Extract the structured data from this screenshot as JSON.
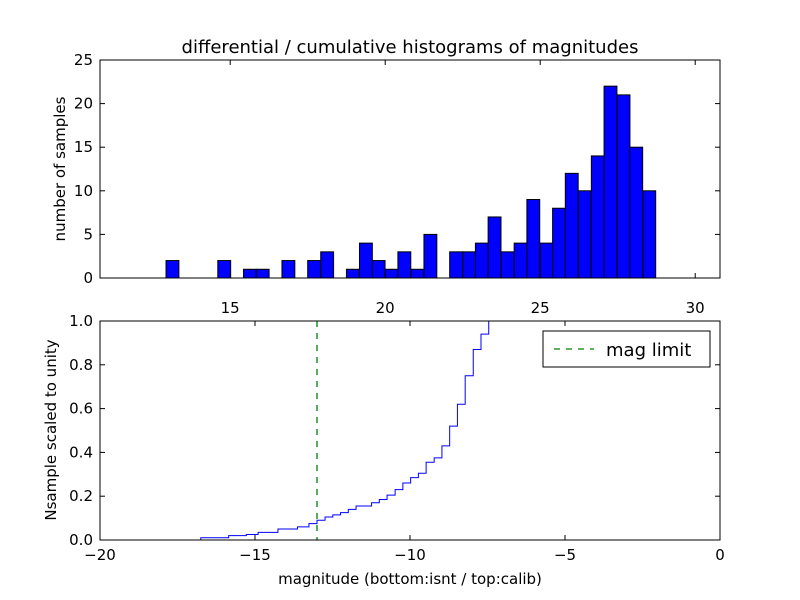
{
  "chart_data": [
    {
      "type": "bar",
      "title": "differential / cumulative histograms of magnitudes",
      "xlabel": "",
      "ylabel": "number of samples",
      "xlim": [
        10.8,
        30.8
      ],
      "ylim": [
        0,
        25
      ],
      "xticks": [
        15,
        20,
        25,
        30
      ],
      "yticks": [
        0,
        5,
        10,
        15,
        20,
        25
      ],
      "xtick_labels": [
        "15",
        "20",
        "25",
        "30"
      ],
      "ytick_labels": [
        "0",
        "5",
        "10",
        "15",
        "20",
        "25"
      ],
      "bin_width": 0.415,
      "bins": [
        {
          "x0": 12.93,
          "value": 2
        },
        {
          "x0": 14.6,
          "value": 2
        },
        {
          "x0": 15.43,
          "value": 1
        },
        {
          "x0": 15.84,
          "value": 1
        },
        {
          "x0": 16.67,
          "value": 2
        },
        {
          "x0": 17.5,
          "value": 2
        },
        {
          "x0": 17.92,
          "value": 3
        },
        {
          "x0": 18.75,
          "value": 1
        },
        {
          "x0": 19.17,
          "value": 4
        },
        {
          "x0": 19.58,
          "value": 2
        },
        {
          "x0": 20.0,
          "value": 1
        },
        {
          "x0": 20.41,
          "value": 3
        },
        {
          "x0": 20.83,
          "value": 1
        },
        {
          "x0": 21.25,
          "value": 5
        },
        {
          "x0": 22.08,
          "value": 3
        },
        {
          "x0": 22.5,
          "value": 3
        },
        {
          "x0": 22.91,
          "value": 4
        },
        {
          "x0": 23.32,
          "value": 7
        },
        {
          "x0": 23.74,
          "value": 3
        },
        {
          "x0": 24.16,
          "value": 4
        },
        {
          "x0": 24.57,
          "value": 9
        },
        {
          "x0": 25.0,
          "value": 4
        },
        {
          "x0": 25.4,
          "value": 8
        },
        {
          "x0": 25.81,
          "value": 12
        },
        {
          "x0": 26.23,
          "value": 10
        },
        {
          "x0": 26.65,
          "value": 14
        },
        {
          "x0": 27.06,
          "value": 22
        },
        {
          "x0": 27.48,
          "value": 21
        },
        {
          "x0": 27.89,
          "value": 15
        },
        {
          "x0": 28.31,
          "value": 10
        }
      ],
      "color": "#0000ff",
      "grid": false
    },
    {
      "type": "line",
      "title": "",
      "xlabel": "magnitude (bottom:isnt / top:calib)",
      "ylabel": "Nsample scaled to unity",
      "xlim": [
        -20,
        0
      ],
      "ylim": [
        0,
        1
      ],
      "xticks": [
        -20,
        -15,
        -10,
        -5,
        0
      ],
      "yticks": [
        0,
        0.2,
        0.4,
        0.6,
        0.8,
        1.0
      ],
      "xtick_labels": [
        "−20",
        "−15",
        "−10",
        "−5",
        "0"
      ],
      "ytick_labels": [
        "0.0",
        "0.2",
        "0.4",
        "0.6",
        "0.8",
        "1.0"
      ],
      "series": [
        {
          "style": "step",
          "color": "#0000ff",
          "x": [
            -20.0,
            -16.75,
            -15.85,
            -15.28,
            -14.9,
            -14.26,
            -13.63,
            -13.26,
            -13.0,
            -12.74,
            -12.49,
            -12.24,
            -11.99,
            -11.74,
            -11.24,
            -10.99,
            -10.74,
            -10.48,
            -10.23,
            -9.98,
            -9.73,
            -9.48,
            -9.22,
            -8.97,
            -8.72,
            -8.47,
            -8.22,
            -7.96,
            -7.71,
            -7.46
          ],
          "y": [
            0.0,
            0.01,
            0.02,
            0.025,
            0.035,
            0.05,
            0.06,
            0.075,
            0.09,
            0.105,
            0.115,
            0.125,
            0.14,
            0.155,
            0.17,
            0.185,
            0.205,
            0.23,
            0.26,
            0.285,
            0.305,
            0.355,
            0.375,
            0.43,
            0.52,
            0.62,
            0.75,
            0.87,
            0.94,
            1.0
          ]
        },
        {
          "name": "mag limit",
          "style": "vline-dashed",
          "color": "#008000",
          "x": -13.0
        }
      ],
      "legend": {
        "placement": "top-right",
        "label": "mag limit"
      },
      "grid": false
    }
  ]
}
